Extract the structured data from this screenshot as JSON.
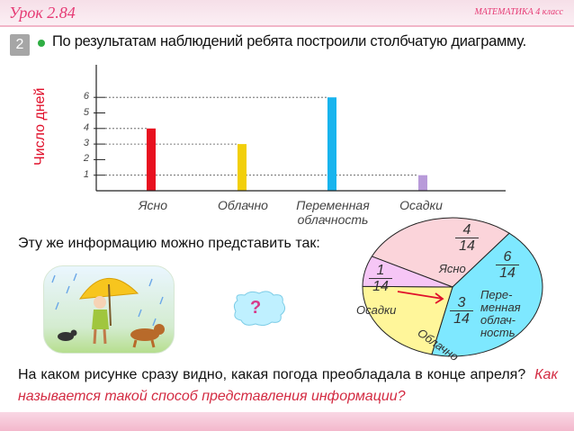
{
  "header": {
    "lesson": "Урок 2.84",
    "subject": "МАТЕМАТИКА 4 класс"
  },
  "task": {
    "number": "2",
    "text": "По результатам наблюдений ребята построили столбчатую диаграмму."
  },
  "chart_data": [
    {
      "type": "bar",
      "ylabel": "Число дней",
      "categories": [
        "Ясно",
        "Облачно",
        "Переменная облачность",
        "Осадки"
      ],
      "values": [
        4,
        3,
        6,
        1
      ],
      "ylim": [
        0,
        6
      ],
      "yticks": [
        "1",
        "2",
        "3",
        "4",
        "5",
        "6"
      ],
      "colors": [
        "#e8101f",
        "#f2cf0a",
        "#18b4ee",
        "#b89ad9"
      ]
    },
    {
      "type": "pie",
      "slices": [
        {
          "label": "Ясно",
          "numerator": "4",
          "denominator": "14",
          "value": 4,
          "color": "#fbd4da"
        },
        {
          "label": "Переменная облачность",
          "numerator": "6",
          "denominator": "14",
          "value": 6,
          "color": "#7ee8ff"
        },
        {
          "label": "Облачно",
          "numerator": "3",
          "denominator": "14",
          "value": 3,
          "color": "#fff69a"
        },
        {
          "label": "Осадки",
          "numerator": "1",
          "denominator": "14",
          "value": 1,
          "color": "#f6c6f6"
        }
      ]
    }
  ],
  "cat_labels": {
    "c1": "Ясно",
    "c2": "Облачно",
    "c3a": "Переменная",
    "c3b": "облачность",
    "c4": "Осадки"
  },
  "pie_labels": {
    "clear": "Ясно",
    "partly1": "Пере-",
    "partly2": "менная",
    "partly3": "облач-",
    "partly4": "ность",
    "cloudy": "Облачно",
    "precip": "Осадки"
  },
  "alt_text": "Эту же информацию можно представить так:",
  "bubble": "?",
  "question": {
    "black": "На каком рисунке сразу видно, какая погода преобладала в конце апреля?",
    "red": "Как называется такой способ представления информации?"
  }
}
